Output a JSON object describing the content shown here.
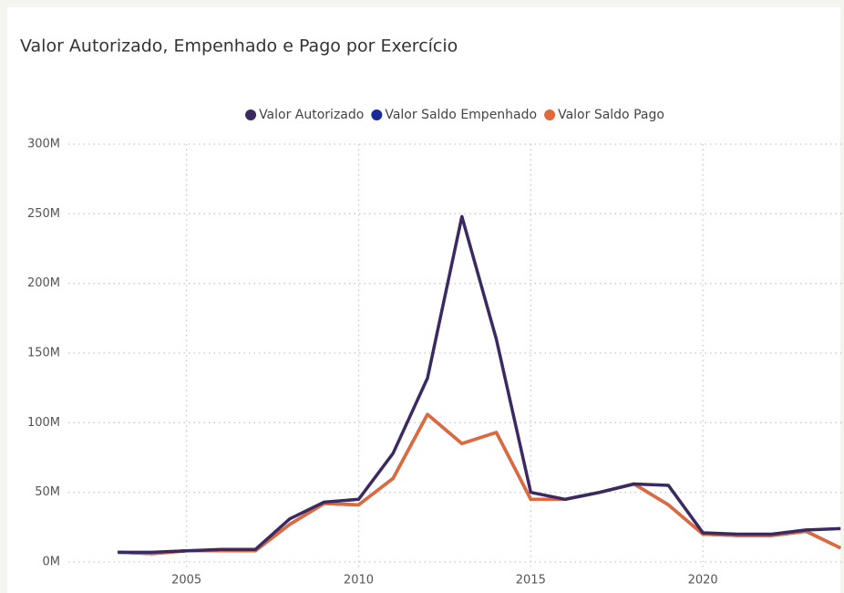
{
  "chart_data": {
    "type": "line",
    "title": "Valor Autorizado, Empenhado e Pago por Exercício",
    "x": [
      2003,
      2004,
      2005,
      2006,
      2007,
      2008,
      2009,
      2010,
      2011,
      2012,
      2013,
      2014,
      2015,
      2016,
      2017,
      2018,
      2019,
      2020,
      2021,
      2022,
      2023,
      2024
    ],
    "series": [
      {
        "name": "Valor Autorizado",
        "color": "#3b2a62",
        "values": [
          7000000,
          7000000,
          8000000,
          9000000,
          9000000,
          31000000,
          43000000,
          45000000,
          78000000,
          132000000,
          248000000,
          160000000,
          50000000,
          45000000,
          50000000,
          56000000,
          55000000,
          21000000,
          20000000,
          20000000,
          23000000,
          24000000
        ]
      },
      {
        "name": "Valor Saldo Empenhado",
        "color": "#1b2a9a",
        "values": [
          7000000,
          6000000,
          8000000,
          8000000,
          8000000,
          27000000,
          42000000,
          41000000,
          60000000,
          106000000,
          85000000,
          93000000,
          45000000,
          45000000,
          50000000,
          56000000,
          41000000,
          20000000,
          19000000,
          19000000,
          22000000,
          10000000
        ]
      },
      {
        "name": "Valor Saldo Pago",
        "color": "#e0693a",
        "values": [
          7000000,
          6000000,
          8000000,
          8000000,
          8000000,
          27000000,
          42000000,
          41000000,
          60000000,
          106000000,
          85000000,
          93000000,
          45000000,
          45000000,
          50000000,
          56000000,
          41000000,
          20000000,
          19000000,
          19000000,
          22000000,
          10000000
        ]
      }
    ],
    "xlim": [
      2001.7,
      2024.1
    ],
    "xticks": [
      2005,
      2010,
      2015,
      2020
    ],
    "ylim": [
      0,
      300000000
    ],
    "yticks": [
      {
        "value": 0,
        "label": "0M"
      },
      {
        "value": 50000000,
        "label": "50M"
      },
      {
        "value": 100000000,
        "label": "100M"
      },
      {
        "value": 150000000,
        "label": "150M"
      },
      {
        "value": 200000000,
        "label": "200M"
      },
      {
        "value": 250000000,
        "label": "250M"
      },
      {
        "value": 300000000,
        "label": "300M"
      }
    ],
    "grid": true,
    "legend": "top"
  }
}
